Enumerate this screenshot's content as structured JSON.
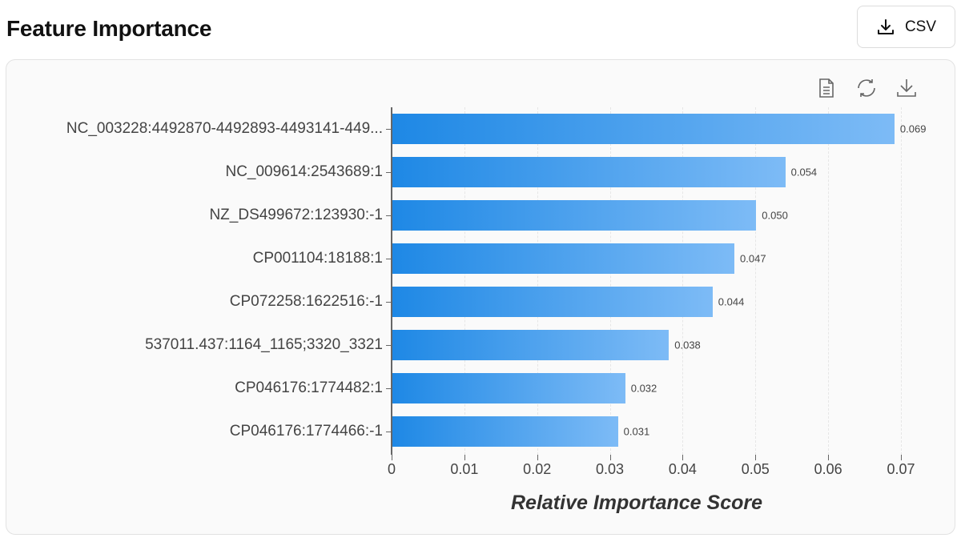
{
  "header": {
    "title": "Feature Importance",
    "csv_button_label": "CSV",
    "csv_button_icon": "download-icon"
  },
  "toolbox": {
    "items": [
      {
        "name": "data-view",
        "icon": "document-icon"
      },
      {
        "name": "restore",
        "icon": "refresh-icon"
      },
      {
        "name": "save-as-image",
        "icon": "download-icon"
      }
    ]
  },
  "colors": {
    "bar_start": "#1e88e5",
    "bar_end": "#7dbbf6"
  },
  "chart_data": {
    "type": "bar",
    "orientation": "horizontal",
    "title": "",
    "xlabel": "Relative Importance Score",
    "ylabel": "",
    "xlim": [
      0,
      0.07
    ],
    "xticks": [
      "0",
      "0.01",
      "0.02",
      "0.03",
      "0.04",
      "0.05",
      "0.06",
      "0.07"
    ],
    "grid": true,
    "categories": [
      "NC_003228:4492870-4492893-4493141-449...",
      "NC_009614:2543689:1",
      "NZ_DS499672:123930:-1",
      "CP001104:18188:1",
      "CP072258:1622516:-1",
      "537011.437:1164_1165;3320_3321",
      "CP046176:1774482:1",
      "CP046176:1774466:-1"
    ],
    "values": [
      0.069,
      0.054,
      0.05,
      0.047,
      0.044,
      0.038,
      0.032,
      0.031
    ],
    "value_labels": [
      "0.069",
      "0.054",
      "0.050",
      "0.047",
      "0.044",
      "0.038",
      "0.032",
      "0.031"
    ]
  }
}
